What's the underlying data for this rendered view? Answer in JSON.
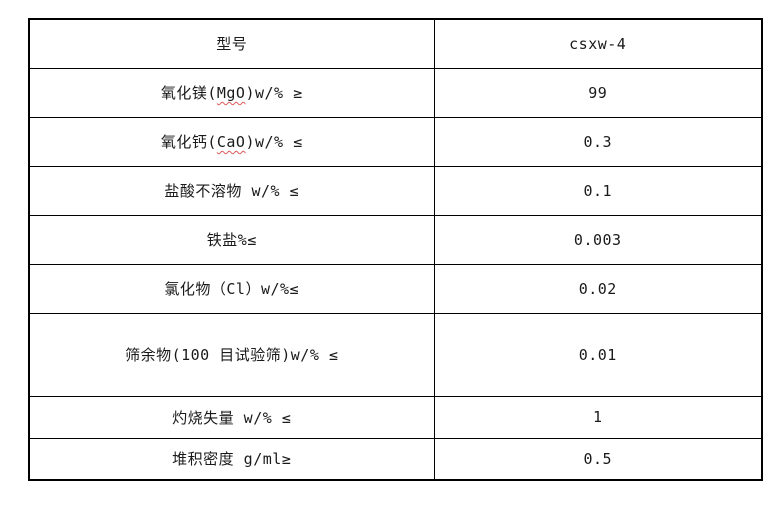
{
  "page": {
    "background": "#ffffff"
  },
  "colors": {
    "table_border": "#000000",
    "text": "#1a1a1a",
    "spellcheck_underline": "#cc0000"
  },
  "table": {
    "rows": [
      {
        "label": "型号",
        "value": "csxw-4"
      },
      {
        "label_pre": "氧化镁(",
        "label_misspelled": "MgO",
        "label_post": ")w/% ≥",
        "value": "99"
      },
      {
        "label_pre": "氧化钙(",
        "label_misspelled": "CaO",
        "label_post": ")w/% ≤",
        "value": "0.3"
      },
      {
        "label": "盐酸不溶物 w/% ≤",
        "value": "0.1"
      },
      {
        "label": "铁盐%≤",
        "value": "0.003"
      },
      {
        "label": "氯化物（Cl）w/%≤",
        "value": "0.02"
      },
      {
        "label": "筛余物(100 目试验筛)w/% ≤",
        "value": "0.01"
      },
      {
        "label": "灼烧失量 w/% ≤",
        "value": "1"
      },
      {
        "label": "堆积密度 g/ml≥",
        "value": "0.5"
      }
    ]
  }
}
